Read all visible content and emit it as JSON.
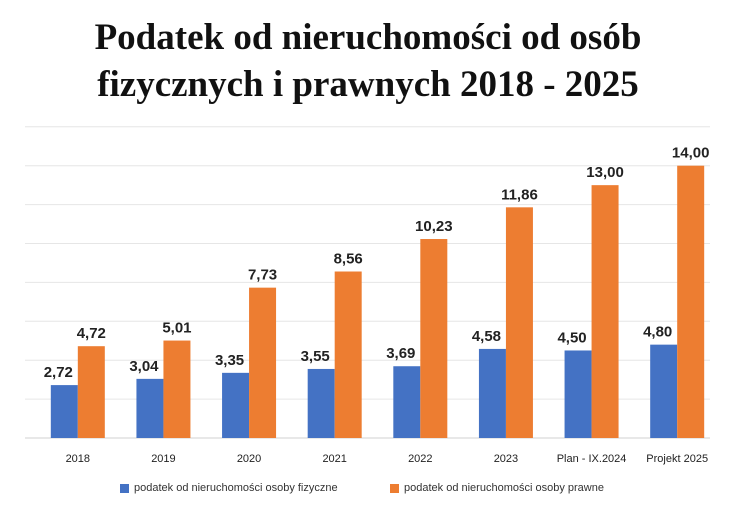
{
  "title_line1": "Podatek od nieruchomości od osób",
  "title_line2": "fizycznych i prawnych 2018 - 2025",
  "chart_data": {
    "type": "bar",
    "title": "Podatek od nieruchomości od osób fizycznych i prawnych 2018 - 2025",
    "categories": [
      "2018",
      "2019",
      "2020",
      "2021",
      "2022",
      "2023",
      "Plan - IX.2024",
      "Projekt 2025"
    ],
    "series": [
      {
        "name": "podatek od nieruchomości osoby fizyczne",
        "color": "#4472C4",
        "values": [
          2.72,
          3.04,
          3.35,
          3.55,
          3.69,
          4.58,
          4.5,
          4.8
        ],
        "labels": [
          "2,72",
          "3,04",
          "3,35",
          "3,55",
          "3,69",
          "4,58",
          "4,50",
          "4,80"
        ]
      },
      {
        "name": "podatek od nieruchomości osoby prawne",
        "color": "#ED7D31",
        "values": [
          4.72,
          5.01,
          7.73,
          8.56,
          10.23,
          11.86,
          13.0,
          14.0
        ],
        "labels": [
          "4,72",
          "5,01",
          "7,73",
          "8,56",
          "10,23",
          "11,86",
          "13,00",
          "14,00"
        ]
      }
    ],
    "ylim": [
      0,
      16
    ],
    "grid": true,
    "legend": "bottom"
  }
}
